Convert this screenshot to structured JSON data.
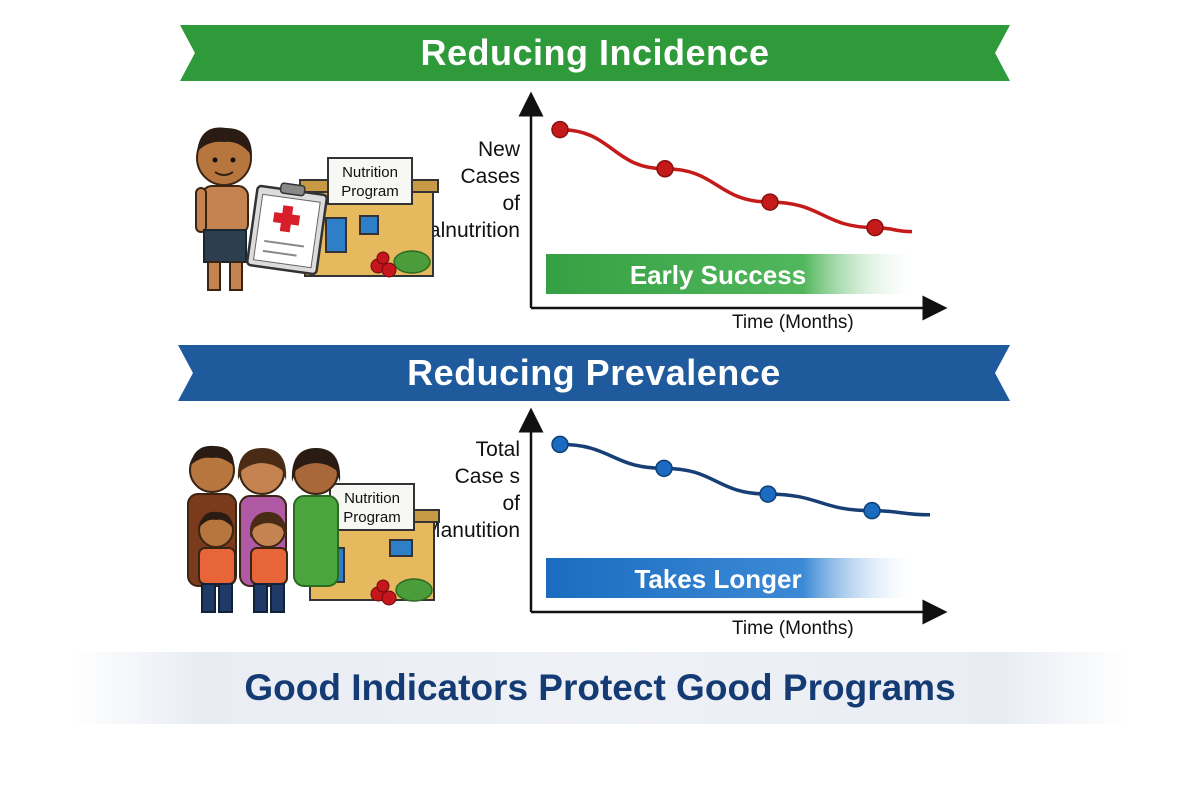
{
  "sections": [
    {
      "title": "Reducing Incidence",
      "y_label": "New\nCases\nof\nMalnutrition",
      "x_label": "Time (Months)",
      "band_label": "Early Success",
      "sign_text_1": "Nutrition",
      "sign_text_2": "Program",
      "colors": {
        "banner": "#2f9a3a",
        "line": "#c41a1a",
        "band": "#35a043"
      }
    },
    {
      "title": "Reducing Prevalence",
      "y_label": "Total\nCase s\nof\nManutition",
      "x_label": "Time (Months)",
      "band_label": "Takes Longer",
      "sign_text_1": "Nutrition",
      "sign_text_2": "Program",
      "colors": {
        "banner": "#1e5a9c",
        "line": "#173e75",
        "band": "#1b6cc0"
      }
    }
  ],
  "footer": "Good Indicators Protect Good Programs",
  "chart_data": [
    {
      "type": "line",
      "x": [
        1,
        2,
        3,
        4
      ],
      "values": [
        9,
        7,
        5.3,
        4
      ],
      "ylim": [
        0,
        10
      ],
      "xlabel": "Time (Months)",
      "ylabel": "New Cases of Malnutrition"
    },
    {
      "type": "line",
      "x": [
        1,
        2,
        3,
        4
      ],
      "values": [
        9,
        7.7,
        6.3,
        5.4
      ],
      "ylim": [
        0,
        10
      ],
      "xlabel": "Time (Months)",
      "ylabel": "Total Case s of Manutition"
    }
  ]
}
